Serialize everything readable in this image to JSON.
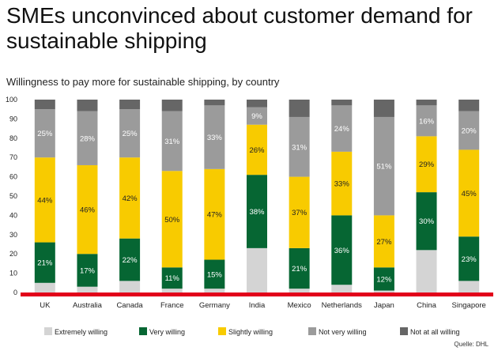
{
  "title": "SMEs unconvinced about customer demand for sustainable shipping",
  "subtitle": "Willingness to pay more for sustainable shipping, by country",
  "source": "Quelle: DHL",
  "chart_data": {
    "type": "bar",
    "stacked": true,
    "categories": [
      "UK",
      "Australia",
      "Canada",
      "France",
      "Germany",
      "India",
      "Mexico",
      "Netherlands",
      "Japan",
      "China",
      "Singapore"
    ],
    "ylim": [
      0,
      100
    ],
    "yticks": [
      0,
      10,
      20,
      30,
      40,
      50,
      60,
      70,
      80,
      90,
      100
    ],
    "legend_position": "bottom",
    "series": [
      {
        "name": "Extremely willing",
        "color": "#d4d4d4",
        "values": [
          5,
          3,
          6,
          2,
          2,
          23,
          2,
          4,
          1,
          22,
          6
        ]
      },
      {
        "name": "Very willing",
        "color": "#066633",
        "values": [
          21,
          17,
          22,
          11,
          15,
          38,
          21,
          36,
          12,
          30,
          23
        ]
      },
      {
        "name": "Slightly willing",
        "color": "#f8cb00",
        "values": [
          44,
          46,
          42,
          50,
          47,
          26,
          37,
          33,
          27,
          29,
          45
        ]
      },
      {
        "name": "Not very willing",
        "color": "#9b9b9b",
        "values": [
          25,
          28,
          25,
          31,
          33,
          9,
          31,
          24,
          51,
          16,
          20
        ]
      },
      {
        "name": "Not at all willing",
        "color": "#666666",
        "values": [
          5,
          6,
          5,
          6,
          3,
          4,
          9,
          3,
          9,
          3,
          6
        ]
      }
    ],
    "data_labels": {
      "Very willing": [
        "21%",
        "17%",
        "22%",
        "11%",
        "15%",
        "38%",
        "21%",
        "36%",
        "12%",
        "30%",
        "23%"
      ],
      "Slightly willing": [
        "44%",
        "46%",
        "42%",
        "50%",
        "47%",
        "26%",
        "37%",
        "33%",
        "27%",
        "29%",
        "45%"
      ],
      "Not very willing": [
        "25%",
        "28%",
        "25%",
        "31%",
        "33%",
        "9%",
        "31%",
        "24%",
        "51%",
        "16%",
        "20%"
      ]
    }
  }
}
